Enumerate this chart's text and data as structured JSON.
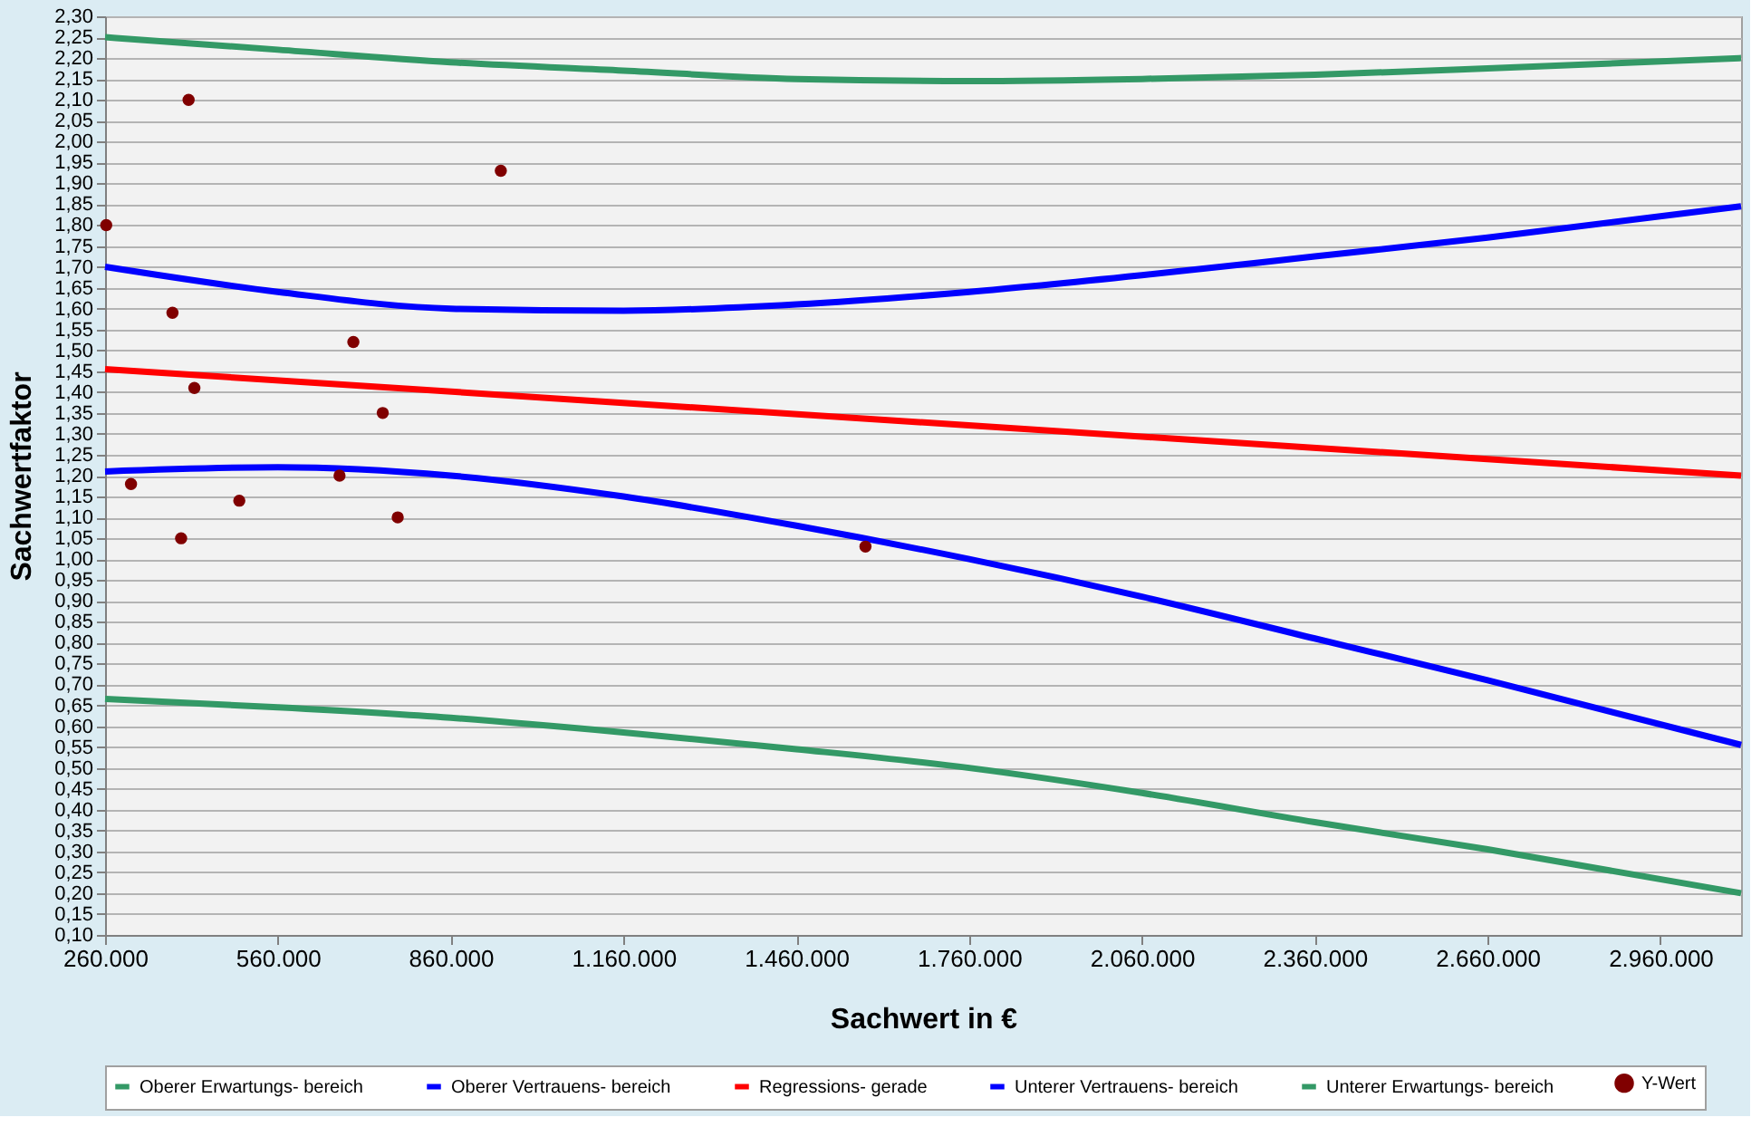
{
  "chart_data": {
    "type": "line",
    "xlabel": "Sachwert in €",
    "ylabel": "Sachwertfaktor",
    "xlim": [
      260000,
      3100000
    ],
    "xticks": [
      {
        "value": 260000,
        "label": "260.000"
      },
      {
        "value": 560000,
        "label": "560.000"
      },
      {
        "value": 860000,
        "label": "860.000"
      },
      {
        "value": 1160000,
        "label": "1.160.000"
      },
      {
        "value": 1460000,
        "label": "1.460.000"
      },
      {
        "value": 1760000,
        "label": "1.760.000"
      },
      {
        "value": 2060000,
        "label": "2.060.000"
      },
      {
        "value": 2360000,
        "label": "2.360.000"
      },
      {
        "value": 2660000,
        "label": "2.660.000"
      },
      {
        "value": 2960000,
        "label": "2.960.000"
      }
    ],
    "ylim": [
      0.1,
      2.3
    ],
    "yticks": [
      {
        "value": 0.1,
        "label": "0,10"
      },
      {
        "value": 0.15,
        "label": "0,15"
      },
      {
        "value": 0.2,
        "label": "0,20"
      },
      {
        "value": 0.25,
        "label": "0,25"
      },
      {
        "value": 0.3,
        "label": "0,30"
      },
      {
        "value": 0.35,
        "label": "0,35"
      },
      {
        "value": 0.4,
        "label": "0,40"
      },
      {
        "value": 0.45,
        "label": "0,45"
      },
      {
        "value": 0.5,
        "label": "0,50"
      },
      {
        "value": 0.55,
        "label": "0,55"
      },
      {
        "value": 0.6,
        "label": "0,60"
      },
      {
        "value": 0.65,
        "label": "0,65"
      },
      {
        "value": 0.7,
        "label": "0,70"
      },
      {
        "value": 0.75,
        "label": "0,75"
      },
      {
        "value": 0.8,
        "label": "0,80"
      },
      {
        "value": 0.85,
        "label": "0,85"
      },
      {
        "value": 0.9,
        "label": "0,90"
      },
      {
        "value": 0.95,
        "label": "0,95"
      },
      {
        "value": 1.0,
        "label": "1,00"
      },
      {
        "value": 1.05,
        "label": "1,05"
      },
      {
        "value": 1.1,
        "label": "1,10"
      },
      {
        "value": 1.15,
        "label": "1,15"
      },
      {
        "value": 1.2,
        "label": "1,20"
      },
      {
        "value": 1.25,
        "label": "1,25"
      },
      {
        "value": 1.3,
        "label": "1,30"
      },
      {
        "value": 1.35,
        "label": "1,35"
      },
      {
        "value": 1.4,
        "label": "1,40"
      },
      {
        "value": 1.45,
        "label": "1,45"
      },
      {
        "value": 1.5,
        "label": "1,50"
      },
      {
        "value": 1.55,
        "label": "1,55"
      },
      {
        "value": 1.6,
        "label": "1,60"
      },
      {
        "value": 1.65,
        "label": "1,65"
      },
      {
        "value": 1.7,
        "label": "1,70"
      },
      {
        "value": 1.75,
        "label": "1,75"
      },
      {
        "value": 1.8,
        "label": "1,80"
      },
      {
        "value": 1.85,
        "label": "1,85"
      },
      {
        "value": 1.9,
        "label": "1,90"
      },
      {
        "value": 1.95,
        "label": "1,95"
      },
      {
        "value": 2.0,
        "label": "2,00"
      },
      {
        "value": 2.05,
        "label": "2,05"
      },
      {
        "value": 2.1,
        "label": "2,10"
      },
      {
        "value": 2.15,
        "label": "2,15"
      },
      {
        "value": 2.2,
        "label": "2,20"
      },
      {
        "value": 2.25,
        "label": "2,25"
      },
      {
        "value": 2.3,
        "label": "2,30"
      }
    ],
    "grid": "y",
    "legend": "bottom",
    "series": [
      {
        "name": "Oberer Erwartungs- bereich",
        "type": "line",
        "color": "#339966",
        "x": [
          260000,
          560000,
          860000,
          1160000,
          1460000,
          1760000,
          2060000,
          2360000,
          2660000,
          3100000
        ],
        "values": [
          2.25,
          2.22,
          2.19,
          2.17,
          2.15,
          2.145,
          2.15,
          2.16,
          2.175,
          2.2
        ]
      },
      {
        "name": "Oberer Vertrauens- bereich",
        "type": "line",
        "color": "#0000ff",
        "x": [
          260000,
          560000,
          860000,
          1160000,
          1460000,
          1760000,
          2060000,
          2360000,
          2660000,
          3100000
        ],
        "values": [
          1.7,
          1.64,
          1.6,
          1.595,
          1.61,
          1.64,
          1.68,
          1.725,
          1.77,
          1.845
        ]
      },
      {
        "name": "Regressions- gerade",
        "type": "line",
        "color": "#ff0000",
        "x": [
          260000,
          3100000
        ],
        "values": [
          1.455,
          1.2
        ]
      },
      {
        "name": "Unterer Vertrauens- bereich",
        "type": "line",
        "color": "#0000ff",
        "x": [
          260000,
          560000,
          860000,
          1160000,
          1460000,
          1760000,
          2060000,
          2360000,
          2660000,
          3100000
        ],
        "values": [
          1.21,
          1.22,
          1.2,
          1.15,
          1.08,
          1.0,
          0.91,
          0.81,
          0.71,
          0.555
        ]
      },
      {
        "name": "Unterer Erwartungs- bereich",
        "type": "line",
        "color": "#339966",
        "x": [
          260000,
          560000,
          860000,
          1160000,
          1460000,
          1760000,
          2060000,
          2360000,
          2660000,
          3100000
        ],
        "values": [
          0.665,
          0.645,
          0.62,
          0.585,
          0.545,
          0.5,
          0.44,
          0.37,
          0.305,
          0.2
        ]
      },
      {
        "name": "Y-Wert",
        "type": "scatter",
        "color": "#800000",
        "x": [
          262000,
          405000,
          947000,
          377000,
          691000,
          415000,
          742000,
          305000,
          667000,
          493000,
          768000,
          392000,
          1580000
        ],
        "values": [
          1.8,
          2.1,
          1.93,
          1.59,
          1.52,
          1.41,
          1.35,
          1.18,
          1.2,
          1.14,
          1.1,
          1.05,
          1.03
        ]
      }
    ]
  }
}
